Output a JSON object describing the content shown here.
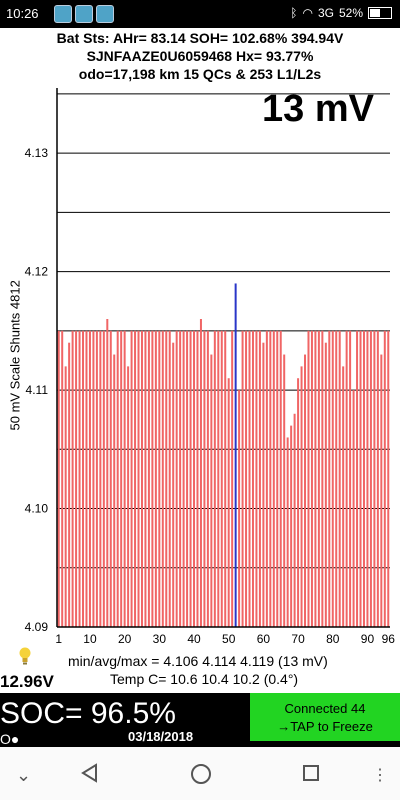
{
  "status_bar": {
    "time": "10:26",
    "apps": [
      "app-notification-icon",
      "car-app-icon",
      "app-icon"
    ],
    "network": "3G",
    "battery": "52%"
  },
  "header": {
    "line1": "Bat Sts: AHr= 83.14 SOH= 102.68% 394.94V",
    "line2": "SJNFAAZE0U6059468   Hx= 93.77%",
    "line3": "odo=17,198 km  15 QCs & 253 L1/L2s",
    "spread": "13 mV"
  },
  "chart_data": {
    "type": "bar",
    "ylabel": "50 mV Scale   Shunts 4812",
    "ylim": [
      4.09,
      4.1355
    ],
    "yticks": [
      "4.13",
      "4.12",
      "4.11",
      "4.10",
      "4.09"
    ],
    "xticks": [
      "1",
      "10",
      "20",
      "30",
      "40",
      "50",
      "60",
      "70",
      "80",
      "90",
      "96"
    ],
    "highlight_cell": 52,
    "values": [
      4.115,
      4.115,
      4.112,
      4.114,
      4.115,
      4.115,
      4.115,
      4.115,
      4.115,
      4.115,
      4.115,
      4.115,
      4.115,
      4.115,
      4.116,
      4.115,
      4.113,
      4.115,
      4.115,
      4.115,
      4.112,
      4.115,
      4.115,
      4.115,
      4.115,
      4.115,
      4.115,
      4.115,
      4.115,
      4.115,
      4.115,
      4.115,
      4.115,
      4.114,
      4.115,
      4.115,
      4.115,
      4.115,
      4.115,
      4.115,
      4.115,
      4.116,
      4.115,
      4.115,
      4.113,
      4.115,
      4.115,
      4.115,
      4.115,
      4.111,
      4.115,
      4.119,
      4.11,
      4.115,
      4.115,
      4.115,
      4.115,
      4.115,
      4.115,
      4.114,
      4.115,
      4.115,
      4.115,
      4.115,
      4.115,
      4.113,
      4.106,
      4.107,
      4.108,
      4.111,
      4.112,
      4.113,
      4.115,
      4.115,
      4.115,
      4.115,
      4.115,
      4.114,
      4.115,
      4.115,
      4.115,
      4.115,
      4.112,
      4.115,
      4.115,
      4.11,
      4.115,
      4.115,
      4.115,
      4.115,
      4.115,
      4.115,
      4.115,
      4.113,
      4.115,
      4.115
    ]
  },
  "footer": {
    "stats": "min/avg/max = 4.106 4.114 4.119  (13 mV)",
    "temp": "Temp C= 10.6  10.4  10.2  (0.4°)",
    "voltage": "12.96V",
    "soc": "SOC= 96.5%",
    "date": "03/18/2018",
    "dots": "O●",
    "connected": "Connected 44",
    "tap": "→TAP to Freeze",
    "colors": {
      "bar": "#f06565",
      "highlight": "#2a36c8",
      "connect_bg": "#22d422"
    }
  }
}
